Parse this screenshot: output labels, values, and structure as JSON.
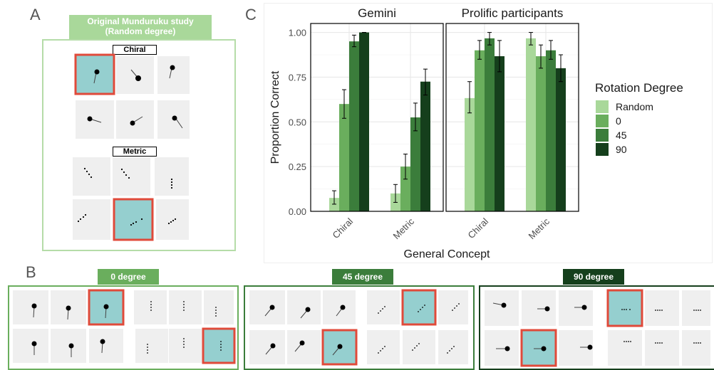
{
  "panels": {
    "a": "A",
    "b": "B",
    "c": "C"
  },
  "panel_a": {
    "header_line1": "Original Munduruku study",
    "header_line2": "(Random degree)",
    "chiral_label": "Chiral",
    "metric_label": "Metric"
  },
  "panel_b": {
    "groups": [
      {
        "label": "0 degree",
        "color": "#6aae5d"
      },
      {
        "label": "45 degree",
        "color": "#3b7d3b"
      },
      {
        "label": "90 degree",
        "color": "#153f1c"
      }
    ]
  },
  "colors": {
    "selected_fill": "#95cfcf",
    "selected_border": "#e04a3a",
    "stimulus_bg": "#efefef"
  },
  "chart_data": {
    "type": "bar",
    "facets": [
      "Gemini",
      "Prolific participants"
    ],
    "categories": [
      "Chiral",
      "Metric"
    ],
    "xlabel": "General Concept",
    "ylabel": "Proportion Correct",
    "ylim": [
      0,
      1.05
    ],
    "yticks": [
      "0.00",
      "0.25",
      "0.50",
      "0.75",
      "1.00"
    ],
    "legend_title": "Rotation Degree",
    "legend_position": "right",
    "grid": true,
    "series": [
      {
        "name": "Random",
        "color": "#a9d89a",
        "values": {
          "Gemini": [
            0.075,
            0.1
          ],
          "Prolific participants": [
            0.633,
            0.967
          ]
        },
        "err_low": {
          "Gemini": [
            0.04,
            0.05
          ],
          "Prolific participants": [
            0.55,
            0.93
          ]
        },
        "err_high": {
          "Gemini": [
            0.115,
            0.15
          ],
          "Prolific participants": [
            0.725,
            1.0
          ]
        }
      },
      {
        "name": "0",
        "color": "#6aae5d",
        "values": {
          "Gemini": [
            0.6,
            0.25
          ],
          "Prolific participants": [
            0.9,
            0.867
          ]
        },
        "err_low": {
          "Gemini": [
            0.52,
            0.18
          ],
          "Prolific participants": [
            0.85,
            0.8
          ]
        },
        "err_high": {
          "Gemini": [
            0.68,
            0.32
          ],
          "Prolific participants": [
            0.955,
            0.93
          ]
        }
      },
      {
        "name": "45",
        "color": "#3b7d3b",
        "values": {
          "Gemini": [
            0.95,
            0.525
          ],
          "Prolific participants": [
            0.967,
            0.9
          ]
        },
        "err_low": {
          "Gemini": [
            0.92,
            0.45
          ],
          "Prolific participants": [
            0.93,
            0.85
          ]
        },
        "err_high": {
          "Gemini": [
            0.985,
            0.605
          ],
          "Prolific participants": [
            1.0,
            0.955
          ]
        }
      },
      {
        "name": "90",
        "color": "#153f1c",
        "values": {
          "Gemini": [
            1.0,
            0.725
          ],
          "Prolific participants": [
            0.867,
            0.8
          ]
        },
        "err_low": {
          "Gemini": [
            1.0,
            0.65
          ],
          "Prolific participants": [
            0.78,
            0.725
          ]
        },
        "err_high": {
          "Gemini": [
            1.0,
            0.795
          ],
          "Prolific participants": [
            0.955,
            0.875
          ]
        }
      }
    ]
  }
}
